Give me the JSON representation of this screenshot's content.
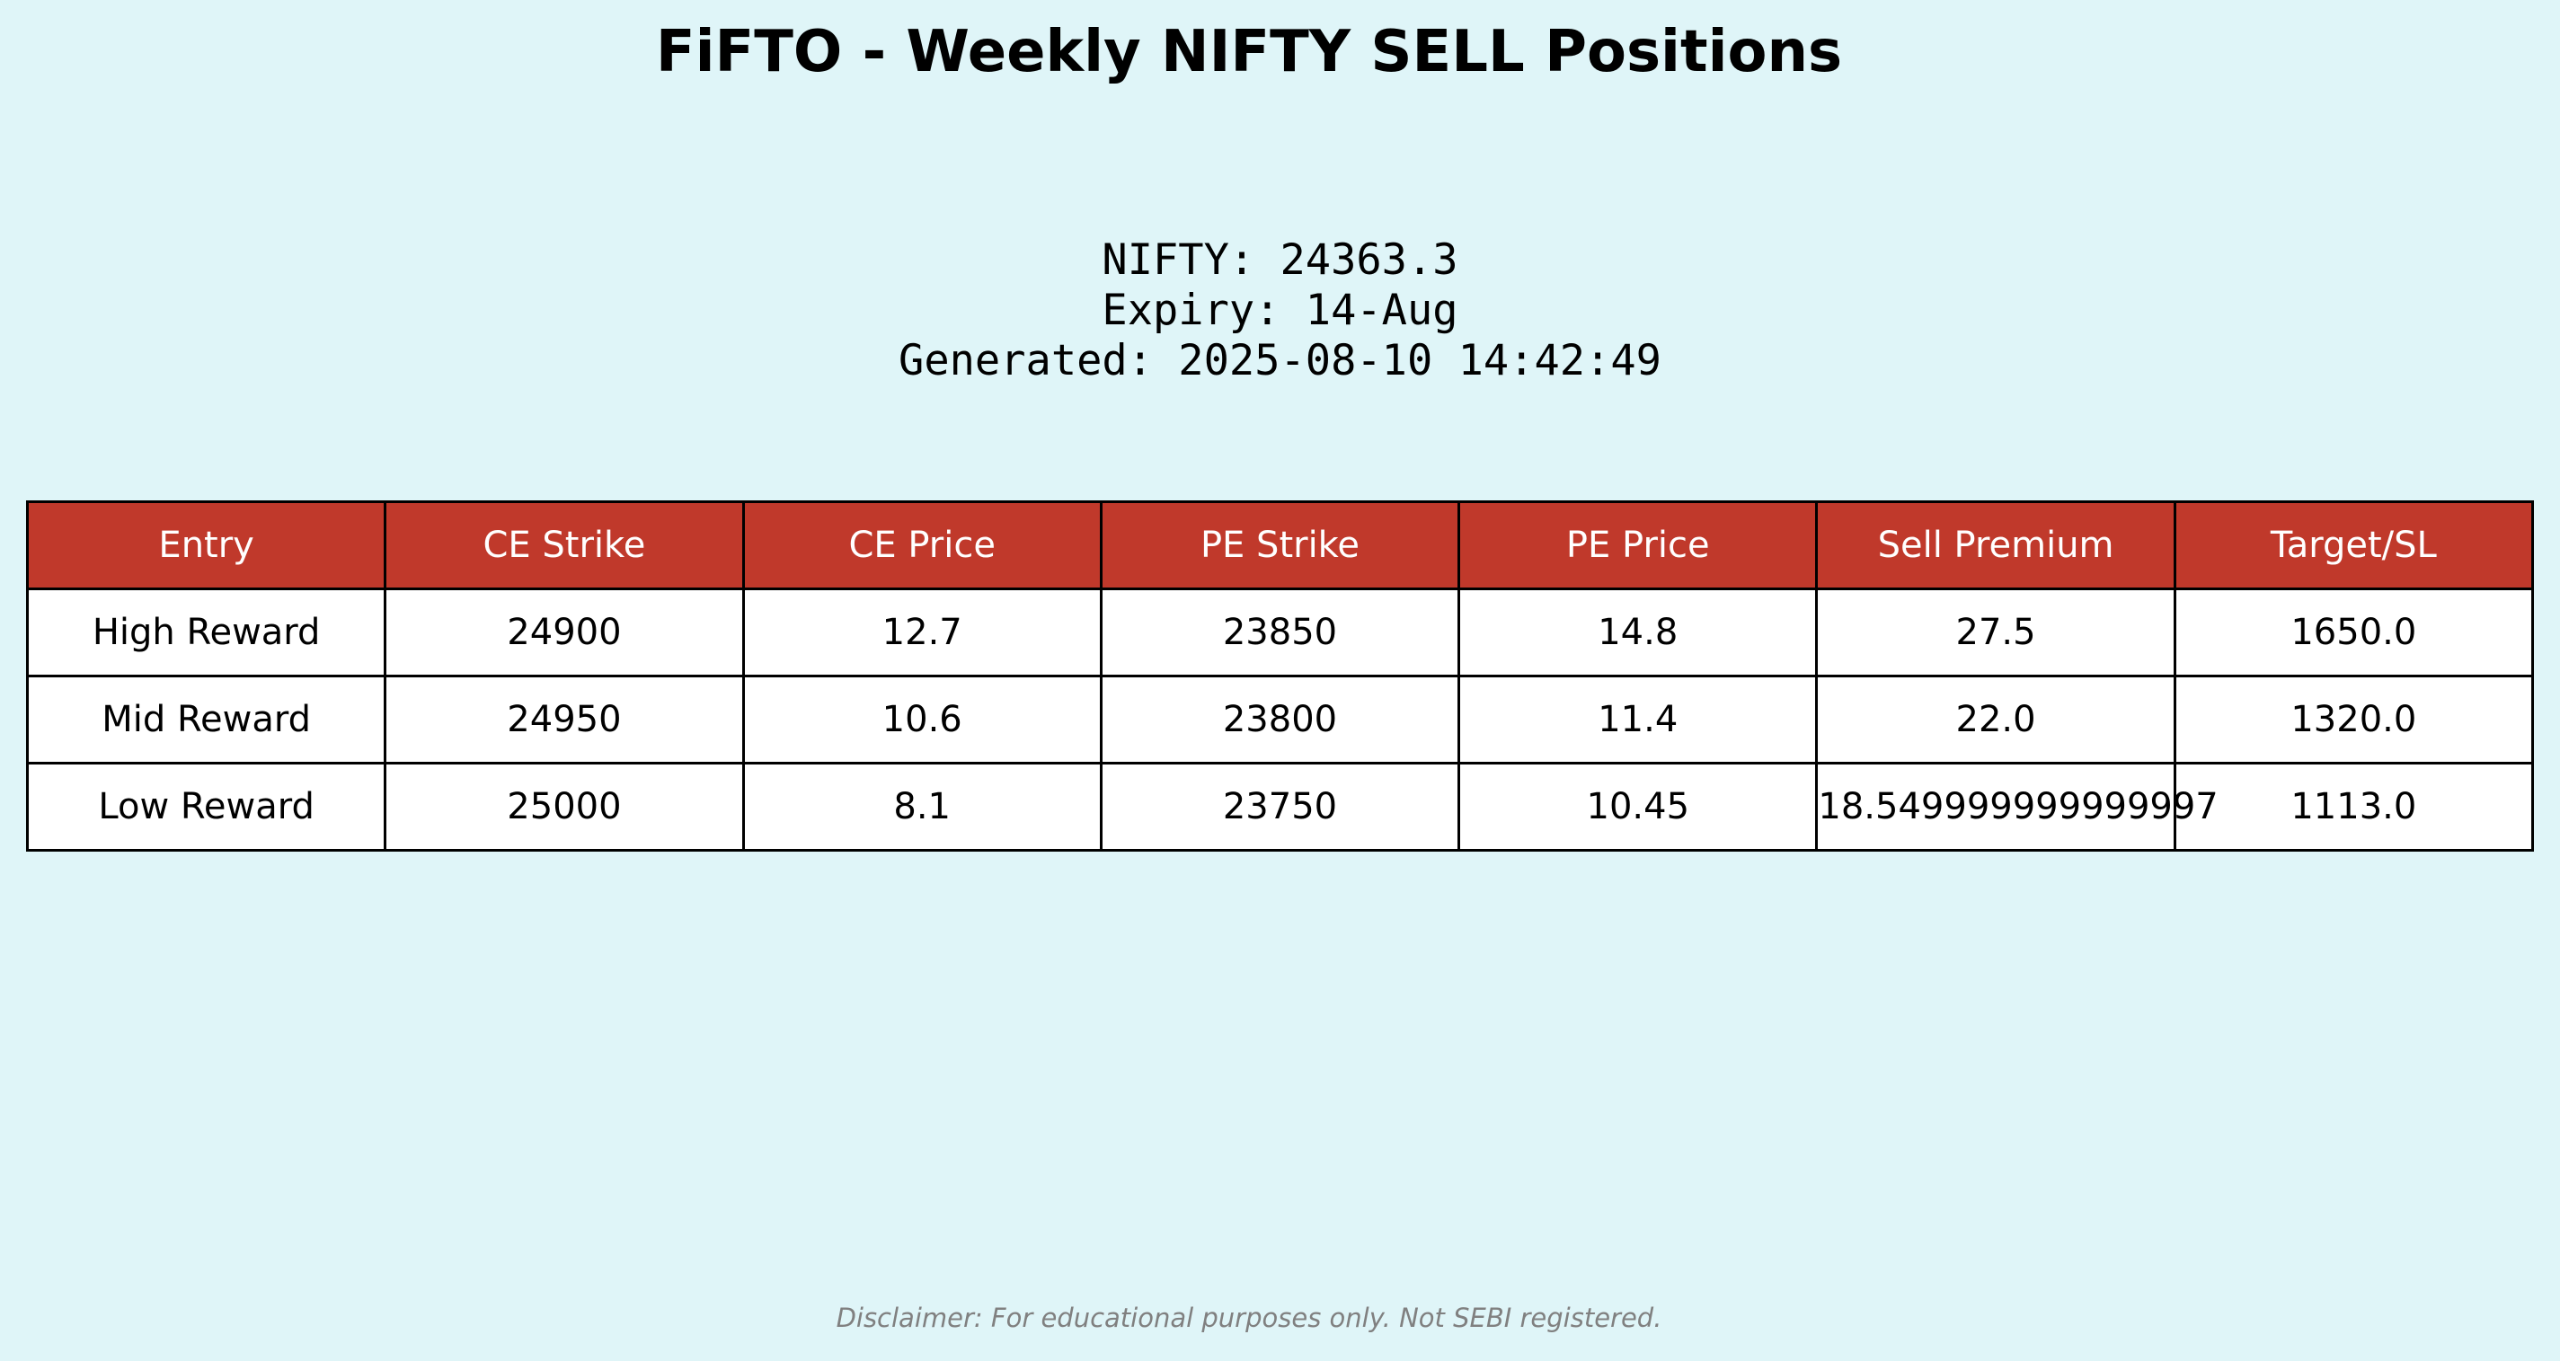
{
  "title": "FiFTO - Weekly NIFTY SELL Positions",
  "info": {
    "nifty": "NIFTY: 24363.3",
    "expiry": "Expiry: 14-Aug",
    "generated": "Generated: 2025-08-10 14:42:49"
  },
  "colors": {
    "background": "#dff5f8",
    "header_bg": "#c0392b",
    "header_text": "#ffffff",
    "disclaimer_text": "#808080"
  },
  "chart_data": {
    "type": "table",
    "columns": [
      "Entry",
      "CE Strike",
      "CE Price",
      "PE Strike",
      "PE Price",
      "Sell Premium",
      "Target/SL"
    ],
    "rows": [
      [
        "High Reward",
        "24900",
        "12.7",
        "23850",
        "14.8",
        "27.5",
        "1650.0"
      ],
      [
        "Mid Reward",
        "24950",
        "10.6",
        "23800",
        "11.4",
        "22.0",
        "1320.0"
      ],
      [
        "Low Reward",
        "25000",
        "8.1",
        "23750",
        "10.45",
        "18.549999999999997",
        "1113.0"
      ]
    ]
  },
  "disclaimer": "Disclaimer: For educational purposes only. Not SEBI registered."
}
